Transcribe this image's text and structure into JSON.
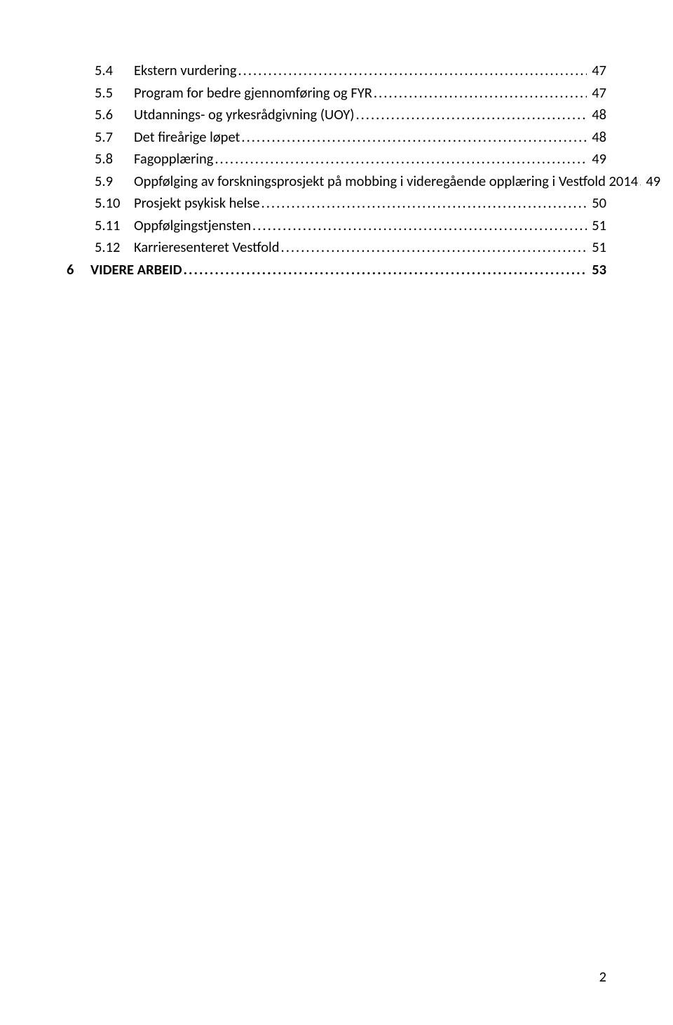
{
  "toc": {
    "entries": [
      {
        "level": 2,
        "num": "5.4",
        "title": "Ekstern vurdering",
        "page": "47",
        "bold": false
      },
      {
        "level": 2,
        "num": "5.5",
        "title": "Program for bedre gjennomføring og FYR",
        "page": "47",
        "bold": false
      },
      {
        "level": 2,
        "num": "5.6",
        "title": "Utdannings- og yrkesrådgivning (UOY)",
        "page": "48",
        "bold": false
      },
      {
        "level": 2,
        "num": "5.7",
        "title": "Det fireårige løpet",
        "page": "48",
        "bold": false
      },
      {
        "level": 2,
        "num": "5.8",
        "title": "Fagopplæring",
        "page": "49",
        "bold": false
      },
      {
        "level": 2,
        "num": "5.9",
        "title": "Oppfølging av forskningsprosjekt på mobbing i videregående opplæring i Vestfold 2014",
        "page": "49",
        "bold": false
      },
      {
        "level": 2,
        "num": "5.10",
        "title": "Prosjekt psykisk helse",
        "page": "50",
        "bold": false
      },
      {
        "level": 2,
        "num": "5.11",
        "title": "Oppfølgingstjensten",
        "page": "51",
        "bold": false
      },
      {
        "level": 2,
        "num": "5.12",
        "title": "Karrieresenteret Vestfold",
        "page": "51",
        "bold": false
      },
      {
        "level": 1,
        "num": "6",
        "title": "VIDERE ARBEID",
        "page": "53",
        "bold": true
      }
    ]
  },
  "page_number": "2",
  "colors": {
    "background": "#ffffff",
    "text": "#000000"
  },
  "typography": {
    "font_family": "Calibri",
    "font_size_pt": 11,
    "line_spacing": 1.15
  }
}
